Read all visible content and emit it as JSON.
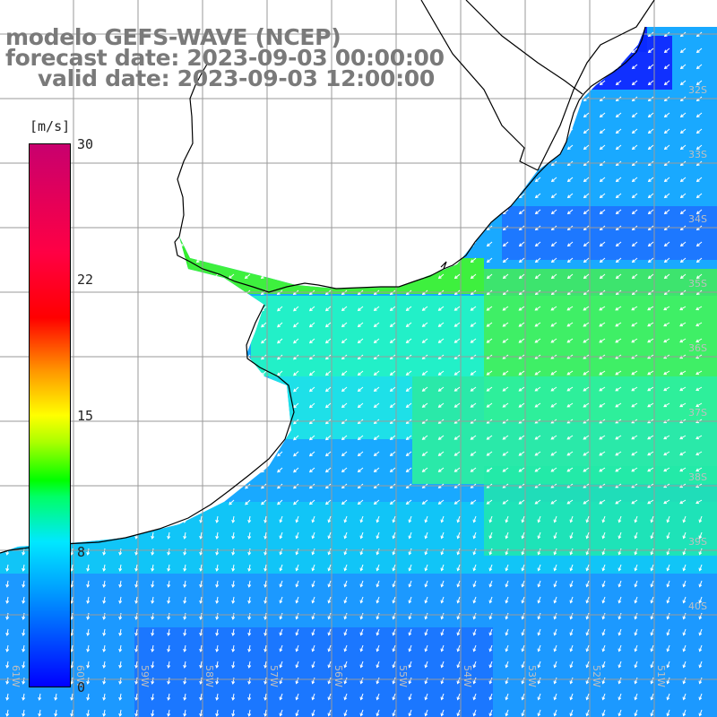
{
  "title": {
    "line1": "modelo GEFS-WAVE (NCEP)",
    "line2": "forecast date: 2023-09-03 00:00:00",
    "line3": "valid date: 2023-09-03 12:00:00"
  },
  "legend": {
    "unit": "[m/s]",
    "min": 0,
    "max": 30,
    "ticks": [
      "30",
      "22",
      "15",
      "8",
      "0"
    ],
    "tick_values": [
      30,
      22,
      15,
      8,
      0
    ]
  },
  "latitude_labels": [
    "32S",
    "33S",
    "34S",
    "35S",
    "36S",
    "37S",
    "38S",
    "39S",
    "40S"
  ],
  "longitude_labels": [
    "61W",
    "60W",
    "59W",
    "58W",
    "57W",
    "56W",
    "55W",
    "54W",
    "53W",
    "52W",
    "51W"
  ],
  "colors": {
    "grid": "#9a9a9a",
    "coast": "#000000",
    "title": "#7a7a7a",
    "land": "#ffffff"
  }
}
